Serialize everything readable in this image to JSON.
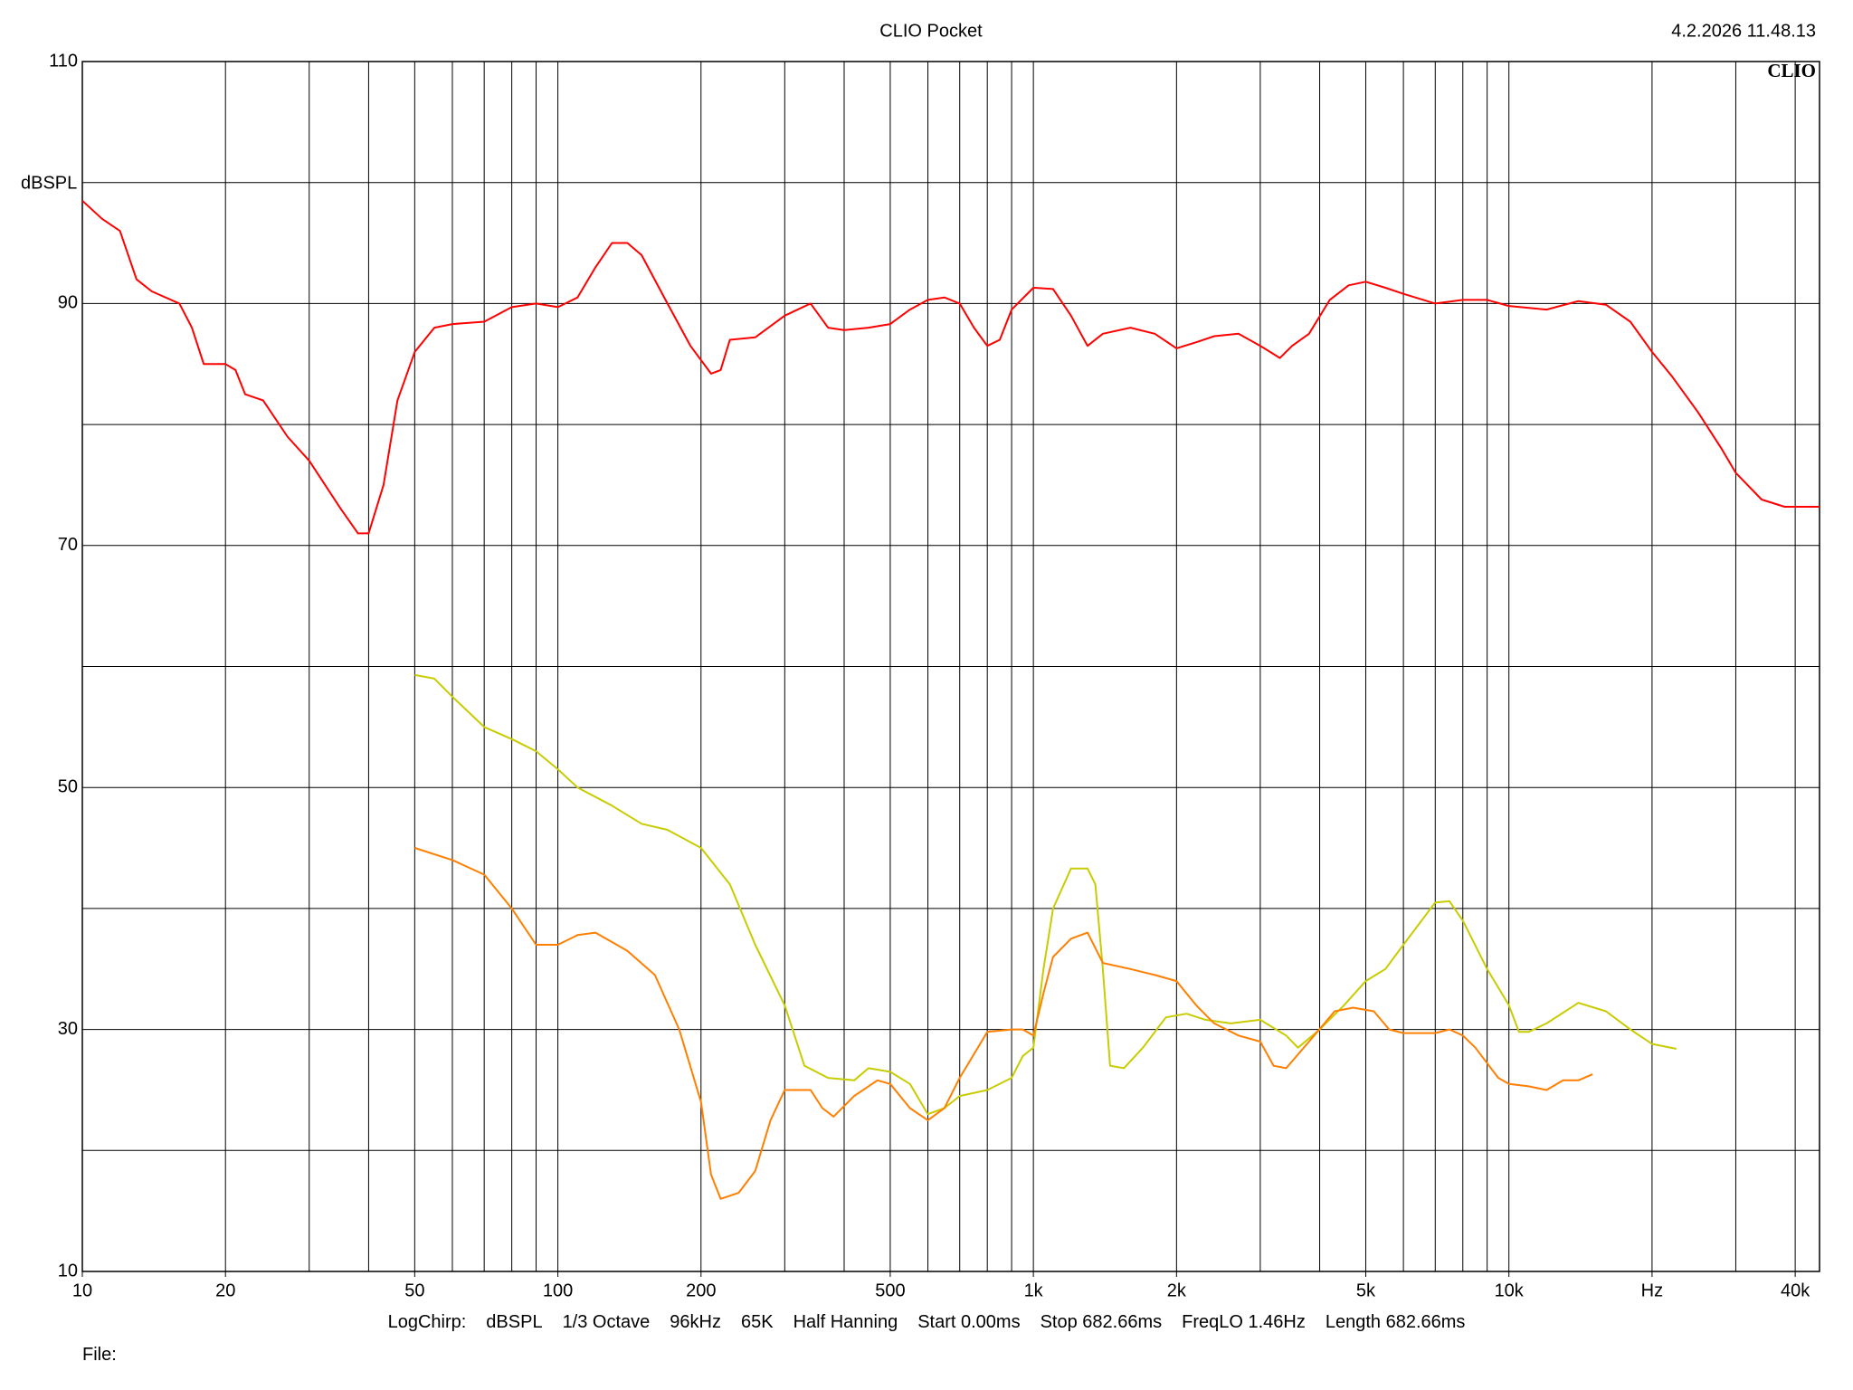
{
  "chart_data": {
    "type": "line",
    "title": "CLIO Pocket",
    "timestamp": "4.2.2026 11.48.13",
    "logo": "CLIO",
    "ylabel": "dBSPL",
    "log_x": true,
    "grid": true,
    "xlim": [
      10,
      45000
    ],
    "ylim": [
      10,
      110
    ],
    "yticks": [
      10,
      30,
      50,
      70,
      90,
      110
    ],
    "y_minor_ticks": [
      20,
      40,
      60,
      80,
      100
    ],
    "xticks": [
      10,
      20,
      50,
      100,
      200,
      500,
      {
        "value": 1000,
        "label": "1k"
      },
      {
        "value": 2000,
        "label": "2k"
      },
      {
        "value": 5000,
        "label": "5k"
      },
      {
        "value": 10000,
        "label": "10k"
      },
      {
        "value": 20000,
        "label": "Hz"
      },
      {
        "value": 40000,
        "label": "40k"
      }
    ],
    "series": [
      {
        "color": "#ff0000",
        "x": [
          10,
          11,
          12,
          13,
          14,
          16,
          17,
          18,
          20,
          21,
          22,
          24,
          27,
          30,
          35,
          38,
          40,
          43,
          46,
          50,
          55,
          60,
          70,
          80,
          90,
          100,
          110,
          120,
          130,
          140,
          150,
          170,
          190,
          210,
          220,
          230,
          260,
          300,
          340,
          370,
          400,
          450,
          500,
          550,
          600,
          650,
          700,
          750,
          800,
          850,
          900,
          1000,
          1100,
          1200,
          1300,
          1400,
          1600,
          1800,
          2000,
          2200,
          2400,
          2700,
          3000,
          3300,
          3500,
          3800,
          4200,
          4600,
          5000,
          5500,
          6000,
          7000,
          8000,
          9000,
          10000,
          12000,
          14000,
          16000,
          18000,
          20000,
          22000,
          25000,
          28000,
          30000,
          34000,
          38000,
          45000
        ],
        "values": [
          98.5,
          97,
          96,
          92,
          91,
          90,
          88,
          85,
          85,
          84.5,
          82.5,
          82,
          79,
          77,
          73,
          71,
          71,
          75,
          82,
          86,
          88,
          88.3,
          88.5,
          89.7,
          90,
          89.7,
          90.5,
          93,
          95,
          95,
          94,
          90,
          86.5,
          84.2,
          84.5,
          87,
          87.2,
          89,
          90,
          88,
          87.8,
          88,
          88.3,
          89.5,
          90.3,
          90.5,
          90,
          88,
          86.5,
          87,
          89.5,
          91.3,
          91.2,
          89,
          86.5,
          87.5,
          88,
          87.5,
          86.3,
          86.8,
          87.3,
          87.5,
          86.5,
          85.5,
          86.5,
          87.5,
          90.3,
          91.5,
          91.8,
          91.3,
          90.8,
          90,
          90.3,
          90.3,
          89.8,
          89.5,
          90.2,
          89.9,
          88.5,
          86,
          84,
          81,
          78,
          76,
          73.8,
          73.2,
          73.2
        ]
      },
      {
        "color": "#c8cc00",
        "x": [
          50,
          55,
          60,
          70,
          80,
          90,
          100,
          110,
          130,
          150,
          170,
          200,
          230,
          260,
          300,
          330,
          370,
          420,
          450,
          500,
          550,
          600,
          650,
          700,
          800,
          900,
          950,
          1000,
          1050,
          1100,
          1200,
          1300,
          1350,
          1400,
          1450,
          1550,
          1700,
          1900,
          2100,
          2300,
          2600,
          3000,
          3400,
          3600,
          4000,
          4500,
          5000,
          5500,
          6000,
          7000,
          7500,
          8000,
          9000,
          10000,
          10500,
          11000,
          12000,
          14000,
          16000,
          18000,
          20000,
          22500
        ],
        "values": [
          59.3,
          59,
          57.5,
          55,
          54,
          53,
          51.5,
          50,
          48.5,
          47,
          46.5,
          45,
          42,
          37,
          32,
          27,
          26,
          25.8,
          26.8,
          26.5,
          25.5,
          23,
          23.5,
          24.5,
          25,
          26,
          27.8,
          28.5,
          35,
          40,
          43.3,
          43.3,
          42,
          35,
          27,
          26.8,
          28.5,
          31,
          31.3,
          30.8,
          30.5,
          30.8,
          29.5,
          28.5,
          30,
          32,
          34,
          35,
          37,
          40.5,
          40.6,
          39,
          35,
          32,
          29.8,
          29.8,
          30.5,
          32.2,
          31.5,
          30,
          28.8,
          28.4
        ]
      },
      {
        "color": "#ff7f00",
        "x": [
          50,
          60,
          70,
          80,
          90,
          100,
          110,
          120,
          140,
          160,
          180,
          200,
          210,
          220,
          240,
          260,
          280,
          300,
          340,
          360,
          380,
          420,
          470,
          500,
          550,
          600,
          650,
          700,
          800,
          900,
          950,
          1000,
          1050,
          1100,
          1200,
          1300,
          1400,
          1600,
          1800,
          2000,
          2200,
          2400,
          2700,
          3000,
          3200,
          3400,
          3800,
          4300,
          4700,
          5200,
          5600,
          6000,
          7000,
          7500,
          8000,
          8500,
          9500,
          10000,
          11000,
          12000,
          13000,
          14000,
          15000
        ],
        "values": [
          45,
          44,
          42.8,
          40,
          37,
          37,
          37.8,
          38,
          36.5,
          34.5,
          30,
          24,
          18,
          16,
          16.5,
          18.3,
          22.5,
          25,
          25,
          23.5,
          22.8,
          24.5,
          25.8,
          25.5,
          23.5,
          22.5,
          23.5,
          26,
          29.8,
          30,
          30,
          29.5,
          33,
          36,
          37.5,
          38,
          35.5,
          35,
          34.5,
          34,
          32,
          30.5,
          29.5,
          29,
          27,
          26.8,
          29,
          31.5,
          31.8,
          31.5,
          30,
          29.7,
          29.7,
          30,
          29.5,
          28.5,
          26,
          25.5,
          25.3,
          25,
          25.8,
          25.8,
          26.3
        ]
      }
    ],
    "footer": [
      "LogChirp:",
      "dBSPL",
      "1/3 Octave",
      "96kHz",
      "65K",
      "Half Hanning",
      "Start 0.00ms",
      "Stop 682.66ms",
      "FreqLO 1.46Hz",
      "Length 682.66ms"
    ],
    "file_label": "File:"
  }
}
